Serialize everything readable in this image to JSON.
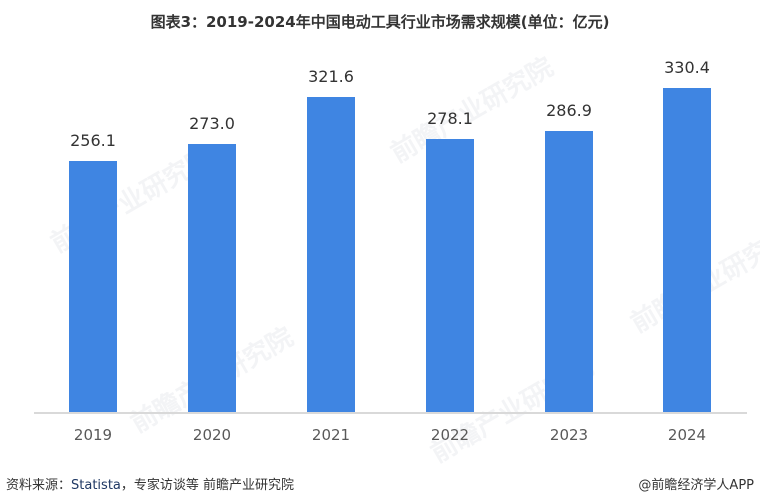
{
  "title": "图表3：2019-2024年中国电动工具行业市场需求规模(单位：亿元)",
  "source": {
    "prefix": "资料来源：",
    "highlight": "Statista",
    "suffix": "，专家访谈等 前瞻产业研究院"
  },
  "credit": "@前瞻经济学人APP",
  "watermark": "前瞻产业研究院",
  "colors": {
    "bar": "#3f85e2",
    "axis": "#d9d9d9",
    "text": "#333333"
  },
  "chart_data": {
    "type": "bar",
    "title": "图表3：2019-2024年中国电动工具行业市场需求规模(单位：亿元)",
    "xlabel": "",
    "ylabel": "亿元",
    "categories": [
      "2019",
      "2020",
      "2021",
      "2022",
      "2023",
      "2024"
    ],
    "values": [
      256.1,
      273.0,
      321.6,
      278.1,
      286.9,
      330.4
    ],
    "value_labels": [
      "256.1",
      "273.0",
      "321.6",
      "278.1",
      "286.9",
      "330.4"
    ],
    "ylim": [
      0,
      330.4
    ],
    "grid": false,
    "legend": null
  }
}
